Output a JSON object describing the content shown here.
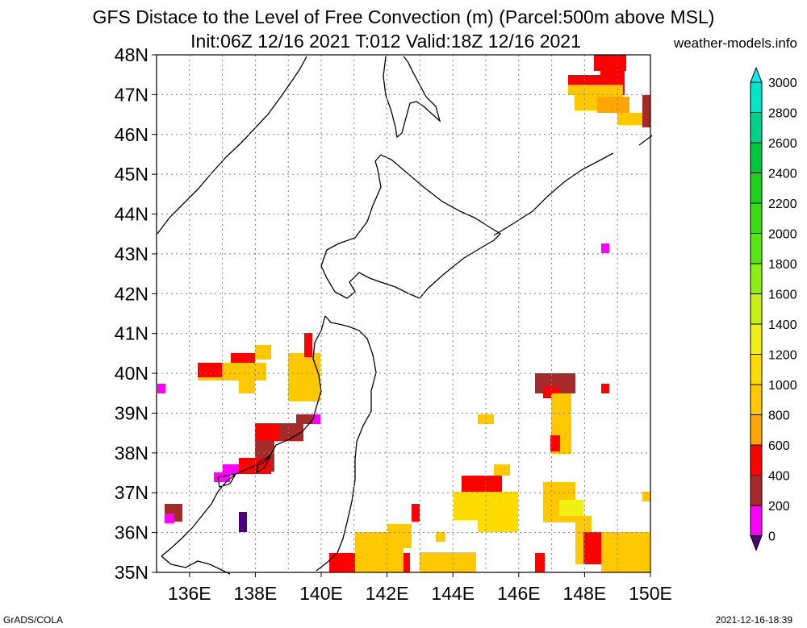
{
  "header": {
    "title_line1": "GFS Distace to the Level of Free Convection (m) (Parcel:500m above MSL)",
    "title_line2": "Init:06Z 12/16 2021 T:012 Valid:18Z 12/16 2021",
    "site": "weather-models.info"
  },
  "footer": {
    "left": "GrADS/COLA",
    "right": "2021-12-16-18:39"
  },
  "map": {
    "lat_labels": [
      "48N",
      "47N",
      "46N",
      "45N",
      "44N",
      "43N",
      "42N",
      "41N",
      "40N",
      "39N",
      "38N",
      "37N",
      "36N",
      "35N"
    ],
    "lon_labels": [
      "136E",
      "138E",
      "140E",
      "142E",
      "144E",
      "146E",
      "148E",
      "150E"
    ],
    "lat_range": [
      35,
      48
    ],
    "lon_range": [
      135,
      150
    ],
    "grid": true
  },
  "colorbar": {
    "labels": [
      "3000",
      "2800",
      "2600",
      "2400",
      "2200",
      "2000",
      "1800",
      "1600",
      "1400",
      "1200",
      "1000",
      "800",
      "600",
      "400",
      "200",
      "0"
    ],
    "colors": [
      "#00e6c8",
      "#00d28c",
      "#00c83c",
      "#1ed21e",
      "#3cdc14",
      "#5ae614",
      "#8cf014",
      "#c8f014",
      "#f0f014",
      "#ffdc00",
      "#ffc800",
      "#ffa500",
      "#ff0000",
      "#a52a2a",
      "#ff00ff",
      "#4b0082"
    ],
    "arrow_top_color": "#00f0f0",
    "arrow_bottom_color": "#4b0082"
  }
}
